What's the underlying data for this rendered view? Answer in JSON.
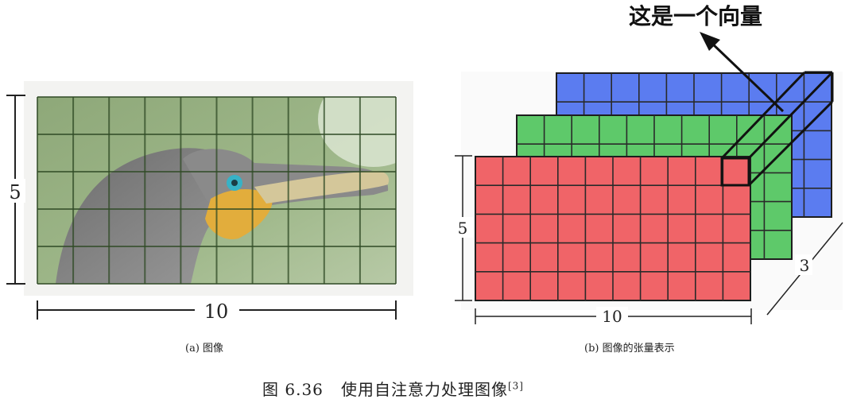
{
  "panel_a": {
    "height_label": "5",
    "width_label": "10",
    "caption": "(a) 图像",
    "grid_rows": 5,
    "grid_cols": 10
  },
  "panel_b": {
    "height_label": "5",
    "width_label": "10",
    "depth_label": "3",
    "callout": "这是一个向量",
    "caption": "(b) 图像的张量表示",
    "layer_colors": [
      "#5b7cf0",
      "#5ec96a",
      "#f06468"
    ],
    "grid_rows": 5,
    "grid_cols": 10
  },
  "figure": {
    "caption_prefix": "图 6.36",
    "caption_text": "使用自注意力处理图像",
    "reference": "[3]"
  }
}
